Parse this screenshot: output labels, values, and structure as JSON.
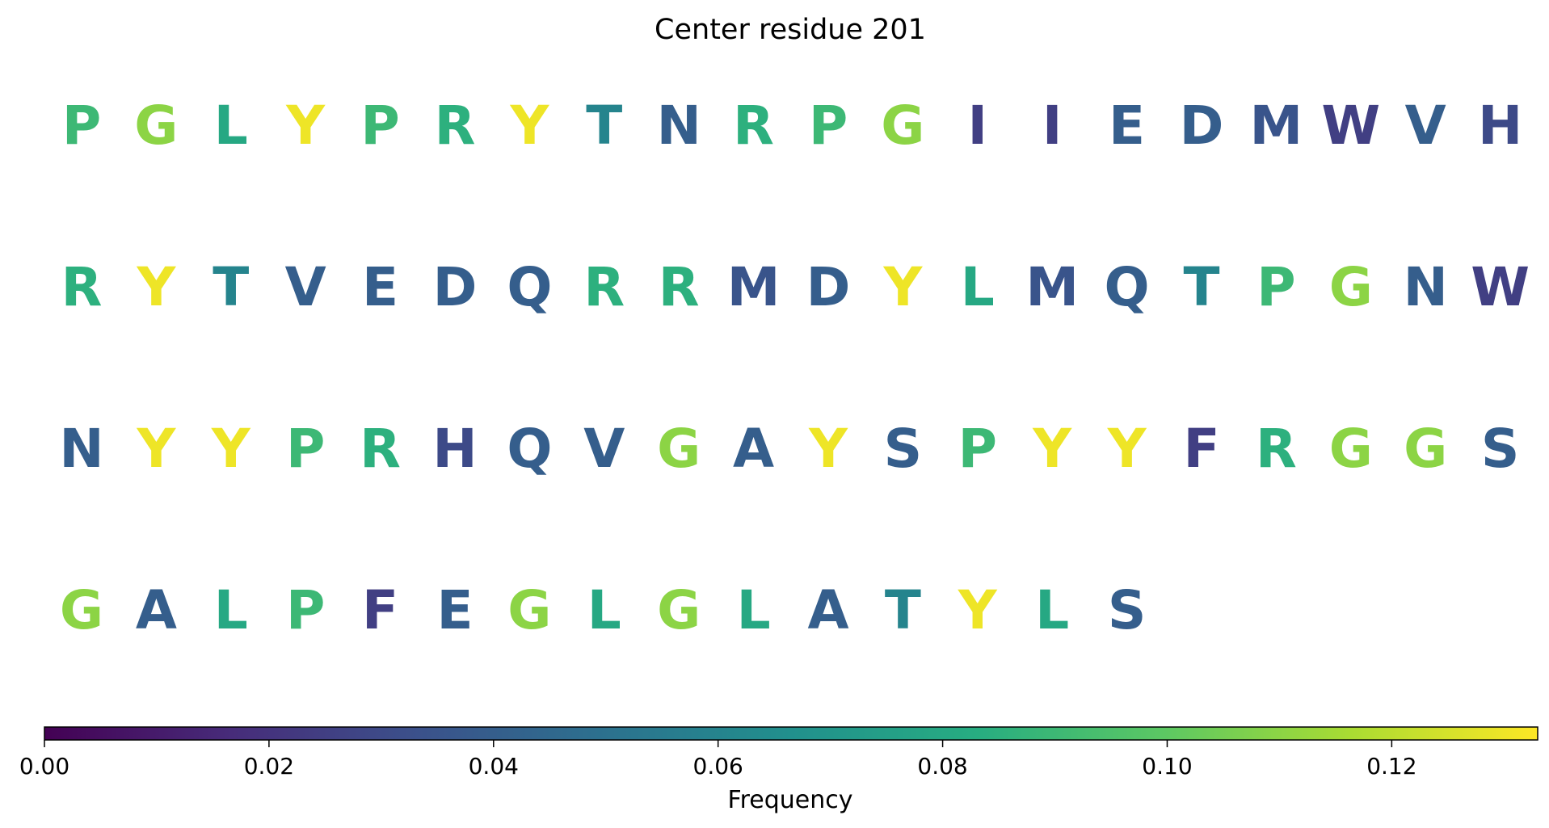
{
  "chart_data": {
    "type": "sequence-heatmap",
    "title": "Center residue 201",
    "colormap": "viridis",
    "colorbar": {
      "label": "Frequency",
      "range": [
        0,
        0.133
      ],
      "ticks": [
        "0.00",
        "0.02",
        "0.04",
        "0.06",
        "0.08",
        "0.10",
        "0.12"
      ],
      "tick_values": [
        0,
        0.02,
        0.04,
        0.06,
        0.08,
        0.1,
        0.12
      ],
      "orientation": "horizontal"
    },
    "rows": [
      {
        "letters": [
          "P",
          "G",
          "L",
          "Y",
          "P",
          "R",
          "Y",
          "T",
          "N",
          "R",
          "P",
          "G",
          "I",
          "I",
          "E",
          "D",
          "M",
          "W",
          "V",
          "H"
        ],
        "values": [
          0.09,
          0.11,
          0.08,
          0.13,
          0.09,
          0.085,
          0.13,
          0.06,
          0.04,
          0.085,
          0.09,
          0.11,
          0.025,
          0.025,
          0.04,
          0.04,
          0.035,
          0.025,
          0.04,
          0.03
        ]
      },
      {
        "letters": [
          "R",
          "Y",
          "T",
          "V",
          "E",
          "D",
          "Q",
          "R",
          "R",
          "M",
          "D",
          "Y",
          "L",
          "M",
          "Q",
          "T",
          "P",
          "G",
          "N",
          "W"
        ],
        "values": [
          0.085,
          0.13,
          0.06,
          0.04,
          0.04,
          0.04,
          0.04,
          0.085,
          0.085,
          0.035,
          0.04,
          0.13,
          0.08,
          0.035,
          0.04,
          0.06,
          0.09,
          0.11,
          0.04,
          0.025
        ]
      },
      {
        "letters": [
          "N",
          "Y",
          "Y",
          "P",
          "R",
          "H",
          "Q",
          "V",
          "G",
          "A",
          "Y",
          "S",
          "P",
          "Y",
          "Y",
          "F",
          "R",
          "G",
          "G",
          "S"
        ],
        "values": [
          0.04,
          0.13,
          0.13,
          0.09,
          0.085,
          0.03,
          0.04,
          0.04,
          0.11,
          0.04,
          0.13,
          0.04,
          0.09,
          0.13,
          0.13,
          0.025,
          0.085,
          0.11,
          0.11,
          0.04
        ]
      },
      {
        "letters": [
          "G",
          "A",
          "L",
          "P",
          "F",
          "E",
          "G",
          "L",
          "G",
          "L",
          "A",
          "T",
          "Y",
          "L",
          "S"
        ],
        "values": [
          0.11,
          0.04,
          0.08,
          0.09,
          0.025,
          0.04,
          0.11,
          0.08,
          0.11,
          0.08,
          0.04,
          0.06,
          0.13,
          0.08,
          0.04
        ]
      }
    ]
  }
}
